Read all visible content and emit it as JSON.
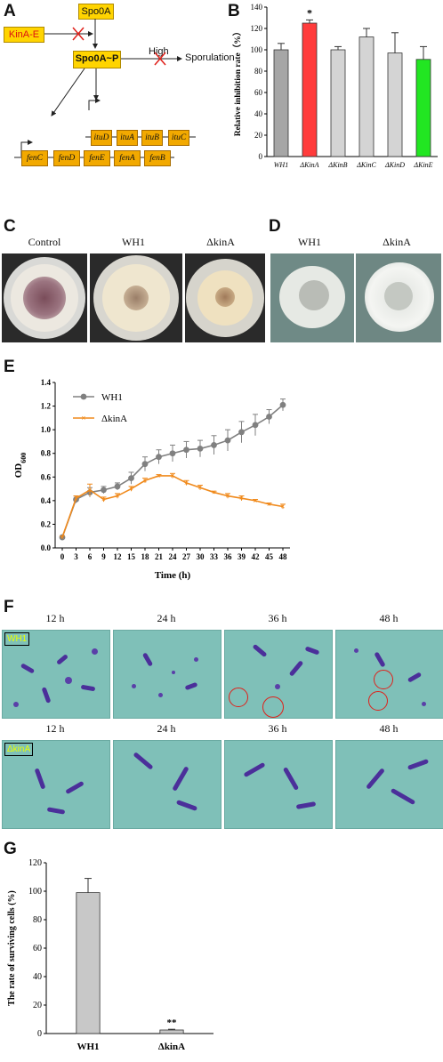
{
  "panels": {
    "A": "A",
    "B": "B",
    "C": "C",
    "D": "D",
    "E": "E",
    "F": "F",
    "G": "G"
  },
  "panel_a": {
    "kinA_e": "KinA-E",
    "spo0a": "Spo0A",
    "spo0a_p": "Spo0A~P",
    "high": "High",
    "sporulation": "Sporulation",
    "itu_genes": [
      "ituD",
      "ituA",
      "ituB",
      "ituC"
    ],
    "fen_genes": [
      "fenC",
      "fenD",
      "fenE",
      "fenA",
      "fenB"
    ]
  },
  "panel_c": {
    "labels": [
      "Control",
      "WH1",
      "ΔkinA"
    ]
  },
  "panel_d": {
    "labels": [
      "WH1",
      "ΔkinA"
    ]
  },
  "panel_f": {
    "times": [
      "12 h",
      "24 h",
      "36 h",
      "48 h"
    ],
    "row_labels": [
      "WH1",
      "ΔkinA"
    ]
  },
  "chart_data": [
    {
      "type": "bar",
      "panel": "B",
      "categories": [
        "WH1",
        "ΔKinA",
        "ΔKinB",
        "ΔKinC",
        "ΔKinD",
        "ΔKinE"
      ],
      "values": [
        100,
        125,
        100,
        112,
        97,
        91
      ],
      "errors": [
        6,
        3,
        3,
        8,
        19,
        12
      ],
      "colors": [
        "#a6a6a6",
        "#ff3b3b",
        "#d4d4d4",
        "#d4d4d4",
        "#d4d4d4",
        "#22e622"
      ],
      "ylabel": "Relative inhibition rate（%）",
      "ylim": [
        0,
        140
      ],
      "yticks": [
        0,
        20,
        40,
        60,
        80,
        100,
        120,
        140
      ],
      "annotations": [
        {
          "category": "ΔKinA",
          "text": "*"
        }
      ]
    },
    {
      "type": "line",
      "panel": "E",
      "x": [
        0,
        3,
        6,
        9,
        12,
        15,
        18,
        21,
        24,
        27,
        30,
        33,
        36,
        39,
        42,
        45,
        48
      ],
      "series": [
        {
          "name": "WH1",
          "color": "#808080",
          "values": [
            0.09,
            0.41,
            0.47,
            0.49,
            0.52,
            0.59,
            0.71,
            0.77,
            0.8,
            0.83,
            0.84,
            0.87,
            0.91,
            0.98,
            1.04,
            1.11,
            1.21
          ],
          "errors": [
            0.01,
            0.03,
            0.04,
            0.03,
            0.03,
            0.05,
            0.06,
            0.06,
            0.07,
            0.07,
            0.07,
            0.08,
            0.09,
            0.09,
            0.09,
            0.06,
            0.05
          ]
        },
        {
          "name": "ΔkinA",
          "color": "#f08a1c",
          "values": [
            0.09,
            0.42,
            0.49,
            0.41,
            0.44,
            0.5,
            0.57,
            0.61,
            0.61,
            0.55,
            0.51,
            0.47,
            0.44,
            0.42,
            0.4,
            0.37,
            0.35
          ],
          "errors": [
            0.01,
            0.02,
            0.05,
            0.02,
            0.02,
            0.02,
            0.02,
            0.01,
            0.02,
            0.02,
            0.02,
            0.01,
            0.02,
            0.02,
            0.01,
            0.01,
            0.02
          ]
        }
      ],
      "xlabel": "Time (h)",
      "ylabel": "OD600",
      "ylim": [
        0,
        1.4
      ],
      "yticks": [
        0.0,
        0.2,
        0.4,
        0.6,
        0.8,
        1.0,
        1.2,
        1.4
      ],
      "legend": "top-left"
    },
    {
      "type": "bar",
      "panel": "G",
      "categories": [
        "WH1",
        "ΔkinA"
      ],
      "values": [
        99,
        2.5
      ],
      "errors": [
        10,
        0.5
      ],
      "colors": [
        "#c8c8c8",
        "#c8c8c8"
      ],
      "ylabel": "The rate of surviving cells (%)",
      "ylim": [
        0,
        120
      ],
      "yticks": [
        0,
        20,
        40,
        60,
        80,
        100,
        120
      ],
      "annotations": [
        {
          "category": "ΔkinA",
          "text": "**"
        }
      ]
    }
  ]
}
